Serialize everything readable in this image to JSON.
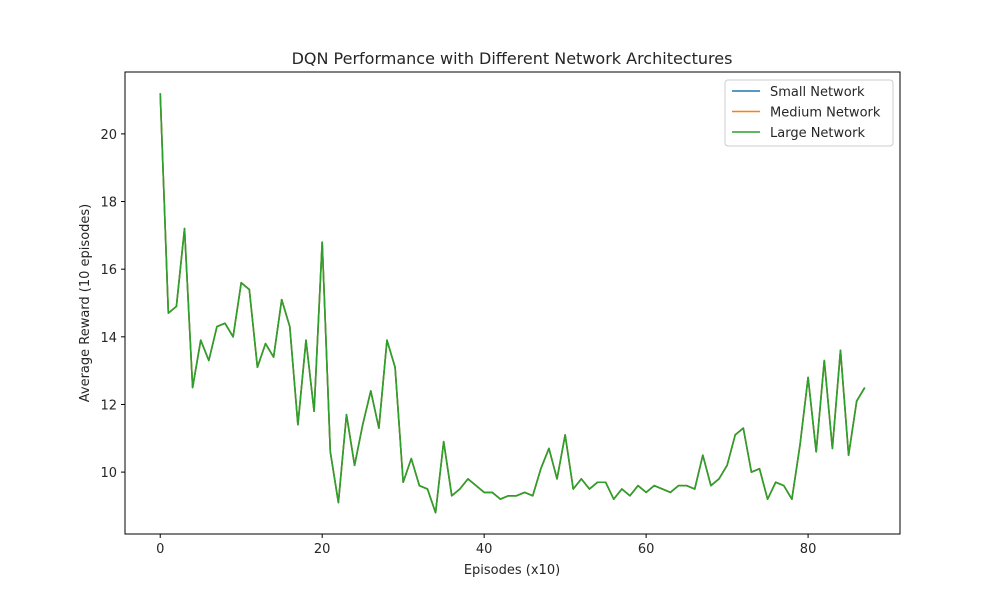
{
  "chart_data": {
    "type": "line",
    "title": "DQN Performance with Different Network Architectures",
    "xlabel": "Episodes (x10)",
    "ylabel": "Average Reward (10 episodes)",
    "xlim": [
      -4.35,
      91.35
    ],
    "ylim": [
      8.17,
      21.83
    ],
    "xticks": [
      0,
      20,
      40,
      60,
      80
    ],
    "yticks": [
      10,
      12,
      14,
      16,
      18,
      20
    ],
    "grid": false,
    "legend_position": "top-right",
    "x": [
      0,
      1,
      2,
      3,
      4,
      5,
      6,
      7,
      8,
      9,
      10,
      11,
      12,
      13,
      14,
      15,
      16,
      17,
      18,
      19,
      20,
      21,
      22,
      23,
      24,
      25,
      26,
      27,
      28,
      29,
      30,
      31,
      32,
      33,
      34,
      35,
      36,
      37,
      38,
      39,
      40,
      41,
      42,
      43,
      44,
      45,
      46,
      47,
      48,
      49,
      50,
      51,
      52,
      53,
      54,
      55,
      56,
      57,
      58,
      59,
      60,
      61,
      62,
      63,
      64,
      65,
      66,
      67,
      68,
      69,
      70,
      71,
      72,
      73,
      74,
      75,
      76,
      77,
      78,
      79,
      80,
      81,
      82,
      83,
      84,
      85,
      86,
      87
    ],
    "series": [
      {
        "name": "Small Network",
        "color": "#1f77b4",
        "values": [
          21.2,
          14.7,
          14.9,
          17.2,
          12.5,
          13.9,
          13.3,
          14.3,
          14.4,
          14.0,
          15.6,
          15.4,
          13.1,
          13.8,
          13.4,
          15.1,
          14.3,
          11.4,
          13.9,
          11.8,
          16.8,
          10.6,
          9.1,
          11.7,
          10.2,
          11.4,
          12.4,
          11.3,
          13.9,
          13.1,
          9.7,
          10.4,
          9.6,
          9.5,
          8.8,
          10.9,
          9.3,
          9.5,
          9.8,
          9.6,
          9.4,
          9.4,
          9.2,
          9.3,
          9.3,
          9.4,
          9.3,
          10.1,
          10.7,
          9.8,
          11.1,
          9.5,
          9.8,
          9.5,
          9.7,
          9.7,
          9.2,
          9.5,
          9.3,
          9.6,
          9.4,
          9.6,
          9.5,
          9.4,
          9.6,
          9.6,
          9.5,
          10.5,
          9.6,
          9.8,
          10.2,
          11.1,
          11.3,
          10.0,
          10.1,
          9.2,
          9.7,
          9.6,
          9.2,
          10.8,
          12.8,
          10.6,
          13.3,
          10.7,
          13.6,
          10.5,
          12.1,
          12.5
        ]
      },
      {
        "name": "Medium Network",
        "color": "#ff7f0e",
        "values": [
          21.2,
          14.7,
          14.9,
          17.2,
          12.5,
          13.9,
          13.3,
          14.3,
          14.4,
          14.0,
          15.6,
          15.4,
          13.1,
          13.8,
          13.4,
          15.1,
          14.3,
          11.4,
          13.9,
          11.8,
          16.8,
          10.6,
          9.1,
          11.7,
          10.2,
          11.4,
          12.4,
          11.3,
          13.9,
          13.1,
          9.7,
          10.4,
          9.6,
          9.5,
          8.8,
          10.9,
          9.3,
          9.5,
          9.8,
          9.6,
          9.4,
          9.4,
          9.2,
          9.3,
          9.3,
          9.4,
          9.3,
          10.1,
          10.7,
          9.8,
          11.1,
          9.5,
          9.8,
          9.5,
          9.7,
          9.7,
          9.2,
          9.5,
          9.3,
          9.6,
          9.4,
          9.6,
          9.5,
          9.4,
          9.6,
          9.6,
          9.5,
          10.5,
          9.6,
          9.8,
          10.2,
          11.1,
          11.3,
          10.0,
          10.1,
          9.2,
          9.7,
          9.6,
          9.2,
          10.8,
          12.8,
          10.6,
          13.3,
          10.7,
          13.6,
          10.5,
          12.1,
          12.5
        ]
      },
      {
        "name": "Large Network",
        "color": "#2ca02c",
        "values": [
          21.2,
          14.7,
          14.9,
          17.2,
          12.5,
          13.9,
          13.3,
          14.3,
          14.4,
          14.0,
          15.6,
          15.4,
          13.1,
          13.8,
          13.4,
          15.1,
          14.3,
          11.4,
          13.9,
          11.8,
          16.8,
          10.6,
          9.1,
          11.7,
          10.2,
          11.4,
          12.4,
          11.3,
          13.9,
          13.1,
          9.7,
          10.4,
          9.6,
          9.5,
          8.8,
          10.9,
          9.3,
          9.5,
          9.8,
          9.6,
          9.4,
          9.4,
          9.2,
          9.3,
          9.3,
          9.4,
          9.3,
          10.1,
          10.7,
          9.8,
          11.1,
          9.5,
          9.8,
          9.5,
          9.7,
          9.7,
          9.2,
          9.5,
          9.3,
          9.6,
          9.4,
          9.6,
          9.5,
          9.4,
          9.6,
          9.6,
          9.5,
          10.5,
          9.6,
          9.8,
          10.2,
          11.1,
          11.3,
          10.0,
          10.1,
          9.2,
          9.7,
          9.6,
          9.2,
          10.8,
          12.8,
          10.6,
          13.3,
          10.7,
          13.6,
          10.5,
          12.1,
          12.5
        ]
      }
    ]
  }
}
